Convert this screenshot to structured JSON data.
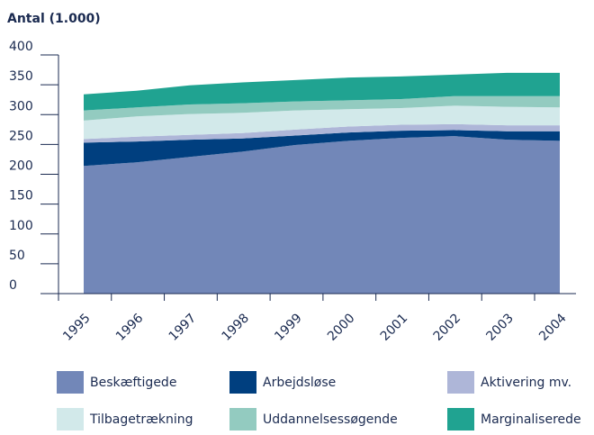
{
  "chart_data": {
    "type": "area",
    "stacked": true,
    "title": "Antal (1.000)",
    "categories": [
      "1995",
      "1996",
      "1997",
      "1998",
      "1999",
      "2000",
      "2001",
      "2002",
      "2003",
      "2004"
    ],
    "ylim": [
      0,
      400
    ],
    "yticks": [
      0,
      50,
      100,
      150,
      200,
      250,
      300,
      350,
      400
    ],
    "series": [
      {
        "name": "Beskæftigede",
        "color": "#7287b8",
        "values": [
          214,
          220,
          229,
          238,
          249,
          256,
          261,
          264,
          258,
          256
        ]
      },
      {
        "name": "Arbejdsløse",
        "color": "#003f7f",
        "values": [
          39,
          35,
          29,
          22,
          16,
          14,
          12,
          10,
          14,
          16
        ]
      },
      {
        "name": "Aktivering mv.",
        "color": "#aeb6d8",
        "values": [
          6,
          8,
          8,
          9,
          10,
          10,
          10,
          10,
          10,
          10
        ]
      },
      {
        "name": "Tilbagetrækning",
        "color": "#d2e9ea",
        "values": [
          31,
          34,
          35,
          34,
          32,
          29,
          28,
          31,
          31,
          30
        ]
      },
      {
        "name": "Uddannelsessøgende",
        "color": "#93cbc0",
        "values": [
          17,
          15,
          16,
          16,
          15,
          15,
          15,
          16,
          18,
          19
        ]
      },
      {
        "name": "Marginaliserede",
        "color": "#20a391",
        "values": [
          27,
          28,
          32,
          35,
          36,
          38,
          38,
          36,
          39,
          39
        ]
      }
    ]
  }
}
